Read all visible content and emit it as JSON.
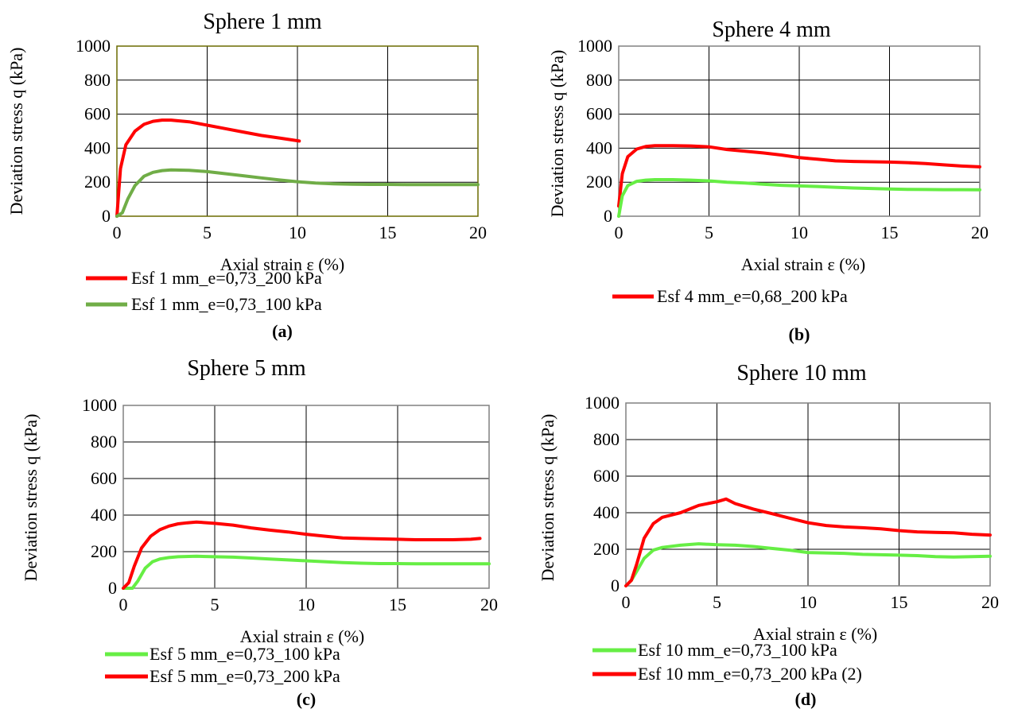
{
  "chart_data": [
    {
      "panel": "(a)",
      "type": "line",
      "title": "Sphere 1 mm",
      "xlabel": "Axial strain ε (%)",
      "ylabel": "Deviation stress q (kPa)",
      "xlim": [
        0,
        20
      ],
      "ylim": [
        0,
        1000
      ],
      "xticks": [
        0,
        5,
        10,
        15,
        20
      ],
      "yticks": [
        0,
        200,
        400,
        600,
        800,
        1000
      ],
      "grid": true,
      "series": [
        {
          "name": "Esf 1 mm_e=0,73_200 kPa",
          "color": "#ff0000",
          "x": [
            0,
            0.2,
            0.5,
            1,
            1.5,
            2,
            2.5,
            3,
            4,
            5,
            6,
            7,
            8,
            9,
            10.1
          ],
          "y": [
            0,
            280,
            420,
            500,
            540,
            558,
            565,
            565,
            555,
            535,
            515,
            495,
            475,
            460,
            442
          ]
        },
        {
          "name": "Esf 1 mm_e=0,73_100 kPa",
          "color": "#70ad47",
          "x": [
            0,
            0.3,
            0.6,
            1,
            1.5,
            2,
            2.5,
            3,
            4,
            5,
            6,
            7,
            8,
            9,
            10,
            11,
            12,
            13,
            14,
            15,
            16,
            17,
            18,
            19,
            20
          ],
          "y": [
            0,
            20,
            100,
            180,
            235,
            258,
            268,
            272,
            270,
            262,
            250,
            238,
            225,
            213,
            203,
            195,
            190,
            188,
            187,
            187,
            186,
            186,
            186,
            186,
            186
          ]
        }
      ]
    },
    {
      "panel": "(b)",
      "type": "line",
      "title": "Sphere 4 mm",
      "xlabel": "Axial strain ε (%)",
      "ylabel": "Deviation stress q (kPa)",
      "xlim": [
        0,
        20
      ],
      "ylim": [
        0,
        1000
      ],
      "xticks": [
        0,
        5,
        10,
        15,
        20
      ],
      "yticks": [
        0,
        200,
        400,
        600,
        800,
        1000
      ],
      "grid": true,
      "series": [
        {
          "name": "Esf 4 mm_e=0,68_200 kPa",
          "color": "#ff0000",
          "x": [
            0,
            0.2,
            0.5,
            1,
            1.5,
            2,
            3,
            4,
            5,
            6,
            7,
            8,
            9,
            10,
            11,
            12,
            13,
            14,
            15,
            16,
            17,
            18,
            19,
            20
          ],
          "y": [
            60,
            250,
            350,
            395,
            410,
            415,
            415,
            413,
            408,
            392,
            382,
            372,
            360,
            345,
            335,
            325,
            322,
            320,
            318,
            315,
            310,
            302,
            295,
            290
          ]
        },
        {
          "name": "",
          "color": "#66ee44",
          "x": [
            0,
            0.2,
            0.5,
            1,
            1.5,
            2,
            3,
            4,
            5,
            6,
            7,
            8,
            9,
            10,
            11,
            12,
            13,
            14,
            15,
            16,
            17,
            18,
            19,
            20
          ],
          "y": [
            0,
            120,
            180,
            205,
            212,
            215,
            215,
            212,
            208,
            200,
            195,
            188,
            182,
            178,
            175,
            170,
            166,
            163,
            160,
            158,
            157,
            156,
            156,
            155
          ]
        }
      ]
    },
    {
      "panel": "(c)",
      "type": "line",
      "title": "Sphere 5 mm",
      "xlabel": "Axial strain ε (%)",
      "ylabel": "Deviation stress q (kPa)",
      "xlim": [
        0,
        20
      ],
      "ylim": [
        0,
        1000
      ],
      "xticks": [
        0,
        5,
        10,
        15,
        20
      ],
      "yticks": [
        0,
        200,
        400,
        600,
        800,
        1000
      ],
      "grid": true,
      "series": [
        {
          "name": "Esf 5 mm_e=0,73_100 kPa",
          "color": "#66ee44",
          "x": [
            0,
            0.5,
            0.8,
            1.2,
            1.6,
            2,
            2.5,
            3,
            4,
            5,
            6,
            7,
            8,
            9,
            10,
            11,
            12,
            13,
            14,
            15,
            16,
            17,
            18,
            19,
            20
          ],
          "y": [
            0,
            0,
            40,
            110,
            145,
            160,
            168,
            172,
            175,
            172,
            170,
            165,
            160,
            155,
            150,
            145,
            140,
            137,
            135,
            135,
            134,
            134,
            134,
            134,
            134
          ]
        },
        {
          "name": "Esf 5 mm_e=0,73_200 kPa",
          "color": "#ff0000",
          "x": [
            0,
            0.3,
            0.6,
            1,
            1.5,
            2,
            2.5,
            3,
            3.5,
            4,
            5,
            6,
            7,
            8,
            9,
            10,
            11,
            12,
            13,
            14,
            15,
            16,
            17,
            18,
            19,
            19.5
          ],
          "y": [
            0,
            30,
            120,
            220,
            285,
            320,
            340,
            352,
            358,
            362,
            355,
            345,
            330,
            318,
            308,
            295,
            285,
            275,
            272,
            270,
            268,
            265,
            265,
            265,
            268,
            272
          ]
        }
      ]
    },
    {
      "panel": "(d)",
      "type": "line",
      "title": "Sphere 10 mm",
      "xlabel": "Axial strain ε (%)",
      "ylabel": "Deviation stress q (kPa)",
      "xlim": [
        0,
        20
      ],
      "ylim": [
        0,
        1000
      ],
      "xticks": [
        0,
        5,
        10,
        15,
        20
      ],
      "yticks": [
        0,
        200,
        400,
        600,
        800,
        1000
      ],
      "grid": true,
      "series": [
        {
          "name": "Esf 10 mm_e=0,73_100 kPa",
          "color": "#66ee44",
          "x": [
            0,
            0.3,
            0.6,
            1,
            1.5,
            2,
            3,
            4,
            5,
            6,
            7,
            8,
            9,
            10,
            11,
            12,
            13,
            14,
            15,
            16,
            17,
            18,
            19,
            20
          ],
          "y": [
            0,
            30,
            80,
            150,
            195,
            210,
            222,
            230,
            225,
            222,
            215,
            205,
            195,
            182,
            180,
            178,
            172,
            170,
            168,
            165,
            160,
            158,
            160,
            162
          ]
        },
        {
          "name": "Esf 10 mm_e=0,73_200 kPa (2)",
          "color": "#ff0000",
          "x": [
            0,
            0.3,
            0.6,
            1,
            1.5,
            2,
            3,
            4,
            5,
            5.5,
            6,
            7,
            8,
            9,
            10,
            11,
            12,
            13,
            14,
            15,
            16,
            17,
            18,
            19,
            20
          ],
          "y": [
            0,
            30,
            120,
            260,
            340,
            375,
            400,
            440,
            460,
            475,
            450,
            420,
            395,
            370,
            345,
            330,
            322,
            318,
            312,
            302,
            295,
            292,
            290,
            282,
            278
          ]
        }
      ]
    }
  ]
}
